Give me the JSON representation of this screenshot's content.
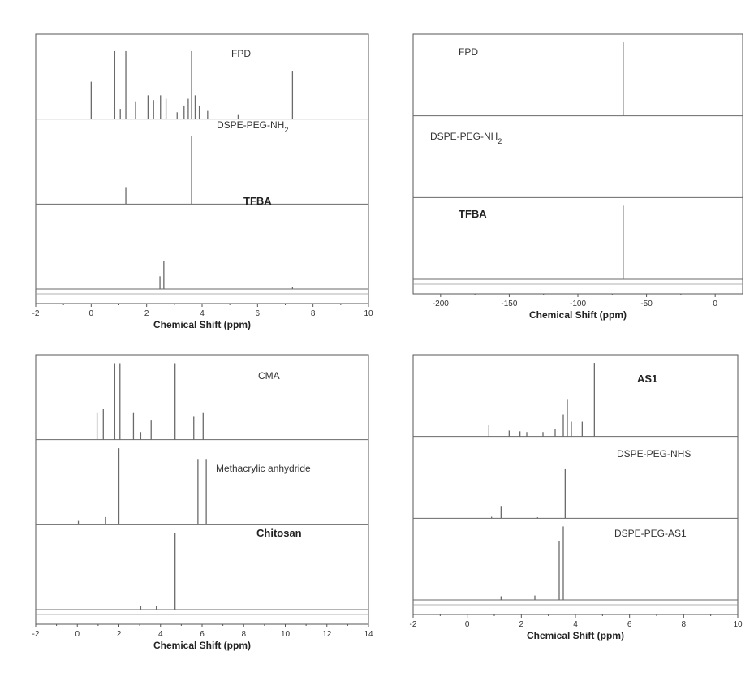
{
  "chart_data": [
    {
      "id": "top-left",
      "type": "line",
      "xlabel": "Chemical Shift (ppm)",
      "xlim": [
        -2,
        10
      ],
      "xticks": [
        -2,
        0,
        2,
        4,
        6,
        8,
        10
      ],
      "xtick_labels": [
        "-2",
        "0",
        "2",
        "4",
        "6",
        "8",
        "10"
      ],
      "grid": false,
      "traces": [
        {
          "name": "FPD",
          "bold": false,
          "peaks": [
            [
              0.0,
              0.55
            ],
            [
              0.85,
              1.0
            ],
            [
              1.05,
              0.15
            ],
            [
              1.25,
              1.0
            ],
            [
              1.6,
              0.25
            ],
            [
              2.05,
              0.35
            ],
            [
              2.25,
              0.28
            ],
            [
              2.5,
              0.35
            ],
            [
              2.7,
              0.3
            ],
            [
              3.1,
              0.1
            ],
            [
              3.35,
              0.2
            ],
            [
              3.5,
              0.3
            ],
            [
              3.62,
              1.0
            ],
            [
              3.75,
              0.35
            ],
            [
              3.9,
              0.2
            ],
            [
              4.2,
              0.12
            ],
            [
              5.3,
              0.06
            ],
            [
              7.26,
              0.7
            ]
          ]
        },
        {
          "name": "DSPE-PEG-NH2",
          "bold": false,
          "peaks": [
            [
              1.25,
              0.25
            ],
            [
              3.62,
              1.0
            ]
          ]
        },
        {
          "name": "TFBA",
          "bold": true,
          "peaks": [
            [
              2.48,
              0.25
            ],
            [
              2.62,
              0.55
            ],
            [
              7.26,
              0.04
            ]
          ]
        }
      ]
    },
    {
      "id": "top-right",
      "type": "line",
      "xlabel": "Chemical Shift (ppm)",
      "xlim": [
        -220,
        20
      ],
      "xticks": [
        -200,
        -150,
        -100,
        -50,
        0
      ],
      "xtick_labels": [
        "-200",
        "-150",
        "-100",
        "-50",
        "0"
      ],
      "grid": false,
      "traces": [
        {
          "name": "FPD",
          "bold": false,
          "peaks": [
            [
              -67,
              1.0
            ]
          ]
        },
        {
          "name": "DSPE-PEG-NH2",
          "bold": false,
          "peaks": []
        },
        {
          "name": "TFBA",
          "bold": true,
          "peaks": [
            [
              -67,
              1.0
            ]
          ]
        }
      ]
    },
    {
      "id": "bottom-left",
      "type": "line",
      "xlabel": "Chemical Shift (ppm)",
      "xlim": [
        -2,
        14
      ],
      "xticks": [
        -2,
        0,
        2,
        4,
        6,
        8,
        10,
        12,
        14
      ],
      "xtick_labels": [
        "-2",
        "0",
        "2",
        "4",
        "6",
        "8",
        "10",
        "12",
        "14"
      ],
      "grid": false,
      "traces": [
        {
          "name": "CMA",
          "bold": false,
          "peaks": [
            [
              0.95,
              0.35
            ],
            [
              1.25,
              0.4
            ],
            [
              1.8,
              1.0
            ],
            [
              2.05,
              1.0
            ],
            [
              2.7,
              0.35
            ],
            [
              3.05,
              0.1
            ],
            [
              3.55,
              0.25
            ],
            [
              4.7,
              1.0
            ],
            [
              5.6,
              0.3
            ],
            [
              6.05,
              0.35
            ]
          ]
        },
        {
          "name": "Methacrylic anhydride",
          "bold": false,
          "peaks": [
            [
              0.05,
              0.05
            ],
            [
              1.35,
              0.1
            ],
            [
              2.0,
              1.0
            ],
            [
              5.8,
              0.85
            ],
            [
              6.2,
              0.85
            ]
          ]
        },
        {
          "name": "Chitosan",
          "bold": true,
          "peaks": [
            [
              3.05,
              0.05
            ],
            [
              3.8,
              0.05
            ],
            [
              4.7,
              1.0
            ]
          ]
        }
      ]
    },
    {
      "id": "bottom-right",
      "type": "line",
      "xlabel": "Chemical Shift (ppm)",
      "xlim": [
        -2,
        10
      ],
      "xticks": [
        -2,
        0,
        2,
        4,
        6,
        8,
        10
      ],
      "xtick_labels": [
        "-2",
        "0",
        "2",
        "4",
        "6",
        "8",
        "10"
      ],
      "grid": false,
      "traces": [
        {
          "name": "AS1",
          "bold": true,
          "peaks": [
            [
              0.8,
              0.15
            ],
            [
              1.55,
              0.08
            ],
            [
              1.95,
              0.07
            ],
            [
              2.2,
              0.06
            ],
            [
              2.8,
              0.06
            ],
            [
              3.25,
              0.1
            ],
            [
              3.55,
              0.3
            ],
            [
              3.7,
              0.5
            ],
            [
              3.85,
              0.2
            ],
            [
              4.25,
              0.2
            ],
            [
              4.7,
              1.0
            ]
          ]
        },
        {
          "name": "DSPE-PEG-NHS",
          "bold": false,
          "peaks": [
            [
              0.9,
              0.03
            ],
            [
              1.25,
              0.25
            ],
            [
              2.6,
              0.02
            ],
            [
              3.62,
              1.0
            ]
          ]
        },
        {
          "name": "DSPE-PEG-AS1",
          "bold": false,
          "peaks": [
            [
              1.25,
              0.05
            ],
            [
              2.5,
              0.06
            ],
            [
              3.4,
              0.8
            ],
            [
              3.55,
              1.0
            ]
          ]
        }
      ]
    }
  ],
  "colors": {
    "trace": "#6a6a6a",
    "axis": "#555555",
    "divider": "#999999"
  }
}
